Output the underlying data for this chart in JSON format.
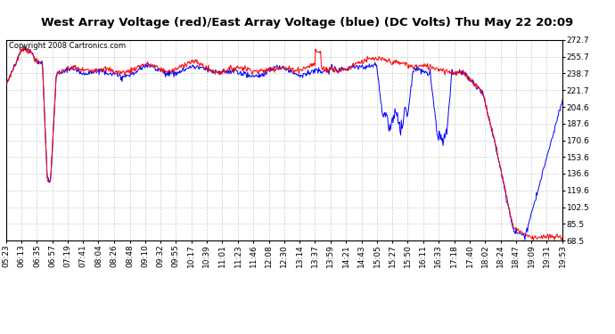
{
  "title": "West Array Voltage (red)/East Array Voltage (blue) (DC Volts) Thu May 22 20:09",
  "copyright": "Copyright 2008 Cartronics.com",
  "ylabel_ticks": [
    272.7,
    255.7,
    238.7,
    221.7,
    204.6,
    187.6,
    170.6,
    153.6,
    136.6,
    119.6,
    102.5,
    85.5,
    68.5
  ],
  "ymin": 68.5,
  "ymax": 272.7,
  "xlabel_ticks": [
    "05:23",
    "06:13",
    "06:35",
    "06:57",
    "07:19",
    "07:41",
    "08:04",
    "08:26",
    "08:48",
    "09:10",
    "09:32",
    "09:55",
    "10:17",
    "10:39",
    "11:01",
    "11:23",
    "11:46",
    "12:08",
    "12:30",
    "13:14",
    "13:37",
    "13:59",
    "14:21",
    "14:43",
    "15:05",
    "15:27",
    "15:50",
    "16:11",
    "16:33",
    "17:18",
    "17:40",
    "18:02",
    "18:24",
    "18:47",
    "19:09",
    "19:31",
    "19:53"
  ],
  "bg_color": "#ffffff",
  "grid_color": "#cccccc",
  "red_color": "#ff0000",
  "blue_color": "#0000ff",
  "title_fontsize": 9.5,
  "tick_fontsize": 6.5,
  "copyright_fontsize": 6
}
